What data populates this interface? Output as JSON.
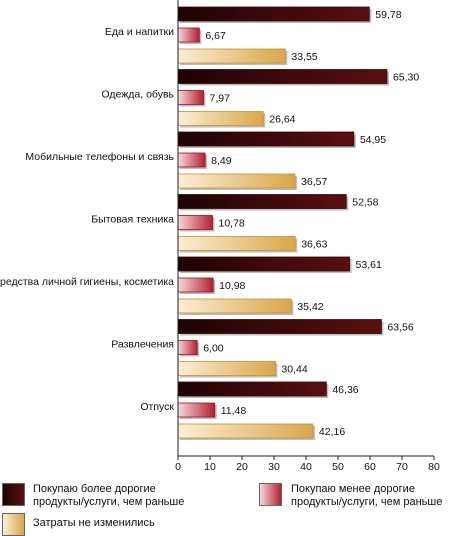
{
  "chart_data": {
    "type": "bar",
    "orientation": "horizontal",
    "categories": [
      "Еда и напитки",
      "Одежда, обувь",
      "Мобильные телефоны и связь",
      "Бытовая техника",
      "Средства личной гигиены, косметика",
      "Развлечения",
      "Отпуск"
    ],
    "series": [
      {
        "name": "Покупаю более дорогие продукты/услуги, чем раньше",
        "color": "#5a0f10",
        "values": [
          59.78,
          65.3,
          54.95,
          52.58,
          53.61,
          63.56,
          46.36
        ],
        "labels": [
          "59,78",
          "65,30",
          "54,95",
          "52,58",
          "53,61",
          "63,56",
          "46,36"
        ]
      },
      {
        "name": "Покупаю менее дорогие продукты/услуги, чем раньше",
        "color": "#b3202e",
        "values": [
          6.67,
          7.97,
          8.49,
          10.78,
          10.98,
          6.0,
          11.48
        ],
        "labels": [
          "6,67",
          "7,97",
          "8,49",
          "10,78",
          "10,98",
          "6,00",
          "11,48"
        ]
      },
      {
        "name": "Затраты не изменились",
        "color": "#d9a64a",
        "values": [
          33.55,
          26.64,
          36.57,
          36.63,
          35.42,
          30.44,
          42.16
        ],
        "labels": [
          "33,55",
          "26,64",
          "36,57",
          "36,63",
          "35,42",
          "30,44",
          "42,16"
        ]
      }
    ],
    "xticks": [
      "0",
      "10",
      "20",
      "30",
      "40",
      "50",
      "60",
      "70",
      "80"
    ],
    "xlim": [
      0,
      80
    ],
    "grid": false,
    "legend_position": "bottom",
    "legend": {
      "item1_line1": "Покупаю более дорогие",
      "item1_line2": "продукты/услуги, чем раньше",
      "item2_line1": "Покупаю менее дорогие",
      "item2_line2": "продукты/услуги, чем раньше",
      "item3": "Затраты не изменились"
    }
  }
}
